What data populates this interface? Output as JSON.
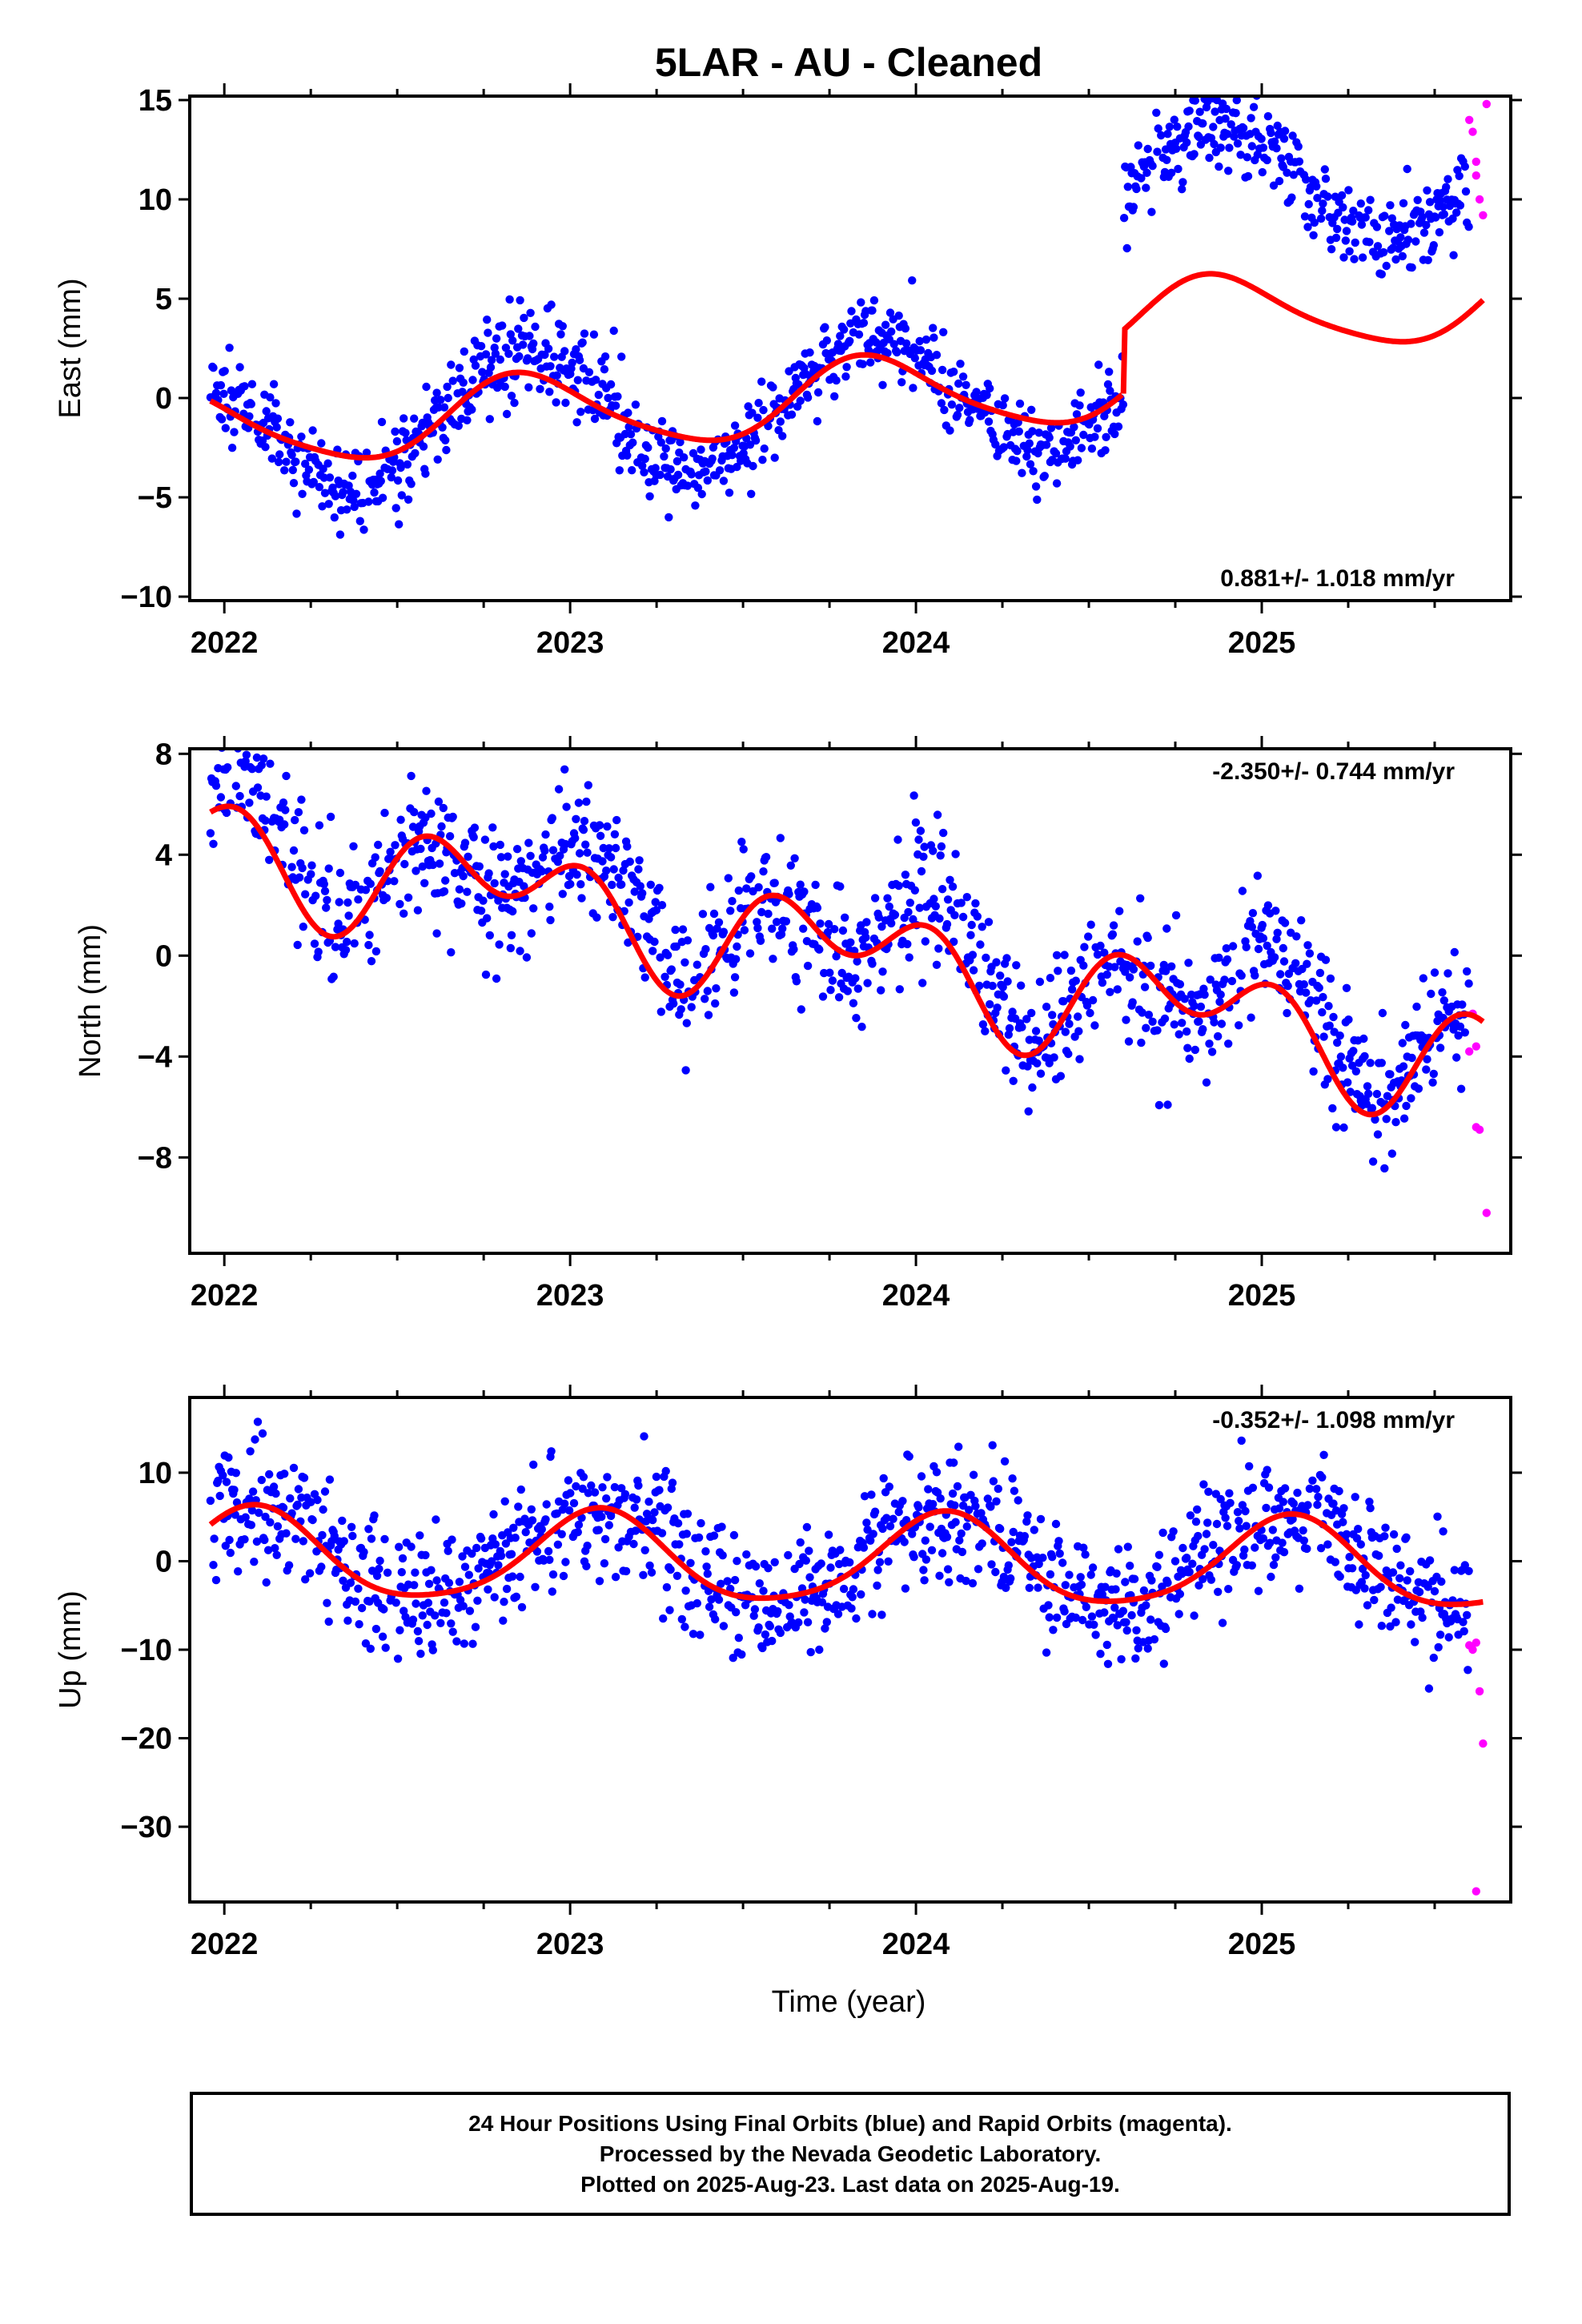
{
  "title": "5LAR  - AU - Cleaned",
  "colors": {
    "final_orbits": "#0000ff",
    "rapid_orbits": "#ff00ff",
    "model_fit": "#ff0000",
    "axes": "#000000"
  },
  "chart_data": [
    {
      "type": "scatter",
      "panel": "east",
      "ylabel": "East (mm)",
      "xlabel": "",
      "xlim": [
        2021.9,
        2025.72
      ],
      "ylim": [
        -10.2,
        15.2
      ],
      "xticks": [
        2022,
        2023,
        2024,
        2025
      ],
      "yticks": [
        15,
        10,
        5,
        0,
        -5,
        -10
      ],
      "velocity_label": "0.881+/- 1.018 mm/yr",
      "velocity_position": "bottom-right",
      "fit_model": {
        "c0": 0.0,
        "rate": 0.881,
        "rate_ref_year": 2023.8,
        "annual_amp": 1.9,
        "annual_phase_year": 2022.87,
        "semiannual_amp": 0.3,
        "semiannual_phase_year": 2022.8,
        "jump_year": 2024.6,
        "jump_size": 3.2
      },
      "scatter_model": {
        "rate": 0.881,
        "rate_ref_year": 2023.8,
        "annual_amp": 3.2,
        "annual_phase_year": 2022.87,
        "jump_year": 2024.6,
        "jump_size": 9.6,
        "noise_sd": 1.1,
        "seed": 11
      },
      "rapid_points": [
        [
          2025.6,
          14.0
        ],
        [
          2025.61,
          13.4
        ],
        [
          2025.62,
          11.9
        ],
        [
          2025.62,
          11.2
        ],
        [
          2025.63,
          10.0
        ],
        [
          2025.64,
          9.2
        ],
        [
          2025.65,
          14.8
        ]
      ]
    },
    {
      "type": "scatter",
      "panel": "north",
      "ylabel": "North (mm)",
      "xlabel": "",
      "xlim": [
        2021.9,
        2025.72
      ],
      "ylim": [
        -11.8,
        8.2
      ],
      "xticks": [
        2022,
        2023,
        2024,
        2025
      ],
      "yticks": [
        8,
        4,
        0,
        -4,
        -8
      ],
      "velocity_label": "-2.350+/- 0.744 mm/yr",
      "velocity_position": "top-right",
      "fit_model": {
        "c0": 0.15,
        "rate": -2.35,
        "rate_ref_year": 2023.8,
        "annual_amp": 1.4,
        "annual_phase_year": 2022.8,
        "semiannual_amp": 1.5,
        "semiannual_phase_year": 2022.56,
        "jump_year": null,
        "jump_size": 0
      },
      "scatter_model": {
        "rate": -2.35,
        "rate_ref_year": 2023.8,
        "annual_amp": 1.2,
        "annual_phase_year": 2022.9,
        "semiannual_amp": 1.6,
        "semiannual_phase_year": 2022.56,
        "offset": 0.6,
        "noise_sd": 1.3,
        "seed": 23
      },
      "rapid_points": [
        [
          2025.6,
          -3.8
        ],
        [
          2025.61,
          -2.3
        ],
        [
          2025.62,
          -3.6
        ],
        [
          2025.62,
          -6.8
        ],
        [
          2025.63,
          -6.9
        ],
        [
          2025.65,
          -10.2
        ]
      ]
    },
    {
      "type": "scatter",
      "panel": "up",
      "ylabel": "Up (mm)",
      "xlabel": "Time (year)",
      "xlim": [
        2021.9,
        2025.72
      ],
      "ylim": [
        -38.5,
        18.5
      ],
      "xticks": [
        2022,
        2023,
        2024,
        2025
      ],
      "yticks": [
        10,
        0,
        -10,
        -20,
        -30
      ],
      "velocity_label": "-0.352+/- 1.098 mm/yr",
      "velocity_position": "top-right",
      "fit_model": {
        "c0": 0.0,
        "rate": -0.352,
        "rate_ref_year": 2023.8,
        "annual_amp": 5.0,
        "annual_phase_year": 2022.08,
        "semiannual_amp": 0.8,
        "semiannual_phase_year": 2022.1,
        "jump_year": null,
        "jump_size": 0
      },
      "scatter_model": {
        "rate": -0.352,
        "rate_ref_year": 2023.8,
        "annual_amp": 5.4,
        "annual_phase_year": 2022.08,
        "offset": 0.3,
        "noise_sd": 3.6,
        "seed": 37
      },
      "rapid_points": [
        [
          2025.6,
          -9.5
        ],
        [
          2025.61,
          -10.0
        ],
        [
          2025.62,
          -9.2
        ],
        [
          2025.63,
          -14.7
        ],
        [
          2025.64,
          -20.6
        ],
        [
          2025.62,
          -37.3
        ]
      ]
    }
  ],
  "footer": {
    "line1": "24 Hour Positions Using Final Orbits (blue) and Rapid Orbits (magenta).",
    "line2": "Processed by the Nevada Geodetic Laboratory.",
    "line3": "Plotted on 2025-Aug-23. Last data on 2025-Aug-19."
  }
}
